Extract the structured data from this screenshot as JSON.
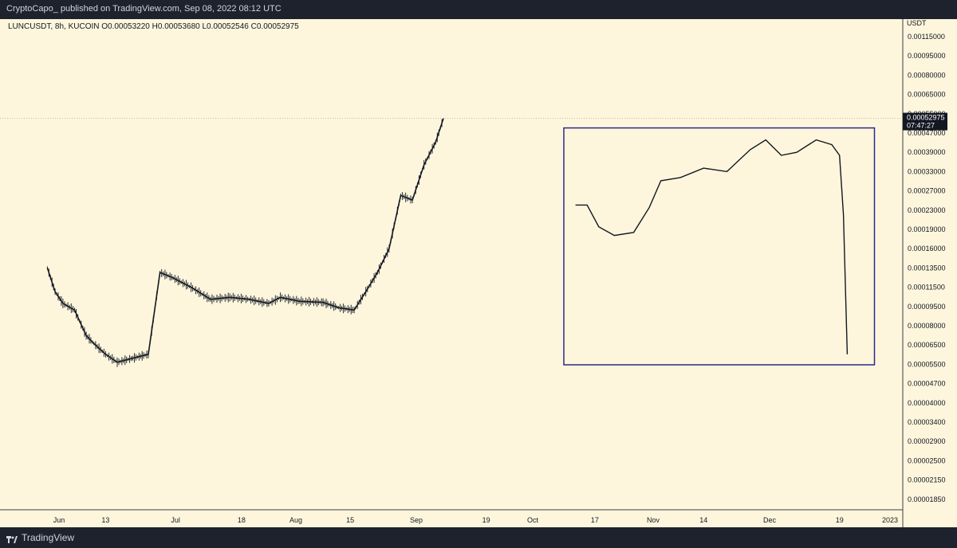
{
  "header": {
    "publisher": "CryptoCapo_ published on TradingView.com, Sep 08, 2022 08:12 UTC"
  },
  "symbol_line": "LUNCUSDT, 8h, KUCOIN  O0.00053220  H0.00053680  L0.00052546  C0.00052975",
  "footer": {
    "logo_text": "TradingView"
  },
  "colors": {
    "background": "#fdf6dc",
    "frame": "#1e222d",
    "candle": "#131722",
    "box": "#2a2a8c",
    "price_line": "#9a9a9a"
  },
  "chart_data": {
    "type": "candlestick",
    "symbol": "LUNCUSDT",
    "interval": "8h",
    "exchange": "KUCOIN",
    "ohlc_last": {
      "open": 0.0005322,
      "high": 0.0005368,
      "low": 0.00052546,
      "close": 0.00052975
    },
    "y_unit": "USDT",
    "y_scale": "log",
    "y_ticks": [
      "0.00115000",
      "0.00095000",
      "0.00080000",
      "0.00065000",
      "0.00055000",
      "0.00047000",
      "0.00039000",
      "0.00033000",
      "0.00027000",
      "0.00023000",
      "0.00019000",
      "0.00016000",
      "0.00013500",
      "0.00011500",
      "0.00009500",
      "0.00008000",
      "0.00006500",
      "0.00005500",
      "0.00004700",
      "0.00004000",
      "0.00003400",
      "0.00002900",
      "0.00002500",
      "0.00002150",
      "0.00001850"
    ],
    "x_ticks": [
      "Jun",
      "13",
      "Jul",
      "18",
      "Aug",
      "15",
      "Sep",
      "19",
      "Oct",
      "17",
      "Nov",
      "14",
      "Dec",
      "19",
      "2023"
    ],
    "last_price_label": "0.00052975",
    "countdown_label": "07:47:27",
    "price_series": [
      {
        "date": "2022-05-29",
        "close": 0.000135
      },
      {
        "date": "2022-05-31",
        "close": 0.00011
      },
      {
        "date": "2022-06-02",
        "close": 9.8e-05
      },
      {
        "date": "2022-06-05",
        "close": 9.2e-05
      },
      {
        "date": "2022-06-08",
        "close": 7.2e-05
      },
      {
        "date": "2022-06-10",
        "close": 6.6e-05
      },
      {
        "date": "2022-06-13",
        "close": 6e-05
      },
      {
        "date": "2022-06-16",
        "close": 5.6e-05
      },
      {
        "date": "2022-06-20",
        "close": 5.8e-05
      },
      {
        "date": "2022-06-24",
        "close": 6e-05
      },
      {
        "date": "2022-06-27",
        "close": 0.00013
      },
      {
        "date": "2022-06-30",
        "close": 0.000125
      },
      {
        "date": "2022-07-05",
        "close": 0.000115
      },
      {
        "date": "2022-07-10",
        "close": 0.000102
      },
      {
        "date": "2022-07-15",
        "close": 0.000104
      },
      {
        "date": "2022-07-20",
        "close": 0.000102
      },
      {
        "date": "2022-07-25",
        "close": 9.8e-05
      },
      {
        "date": "2022-07-28",
        "close": 0.000104
      },
      {
        "date": "2022-08-02",
        "close": 0.0001
      },
      {
        "date": "2022-08-08",
        "close": 9.9e-05
      },
      {
        "date": "2022-08-12",
        "close": 9.4e-05
      },
      {
        "date": "2022-08-16",
        "close": 9.2e-05
      },
      {
        "date": "2022-08-19",
        "close": 0.00011
      },
      {
        "date": "2022-08-22",
        "close": 0.00013
      },
      {
        "date": "2022-08-25",
        "close": 0.00016
      },
      {
        "date": "2022-08-28",
        "close": 0.00026
      },
      {
        "date": "2022-08-31",
        "close": 0.00025
      },
      {
        "date": "2022-09-03",
        "close": 0.00035
      },
      {
        "date": "2022-09-06",
        "close": 0.00043
      },
      {
        "date": "2022-09-08",
        "close": 0.00052975
      }
    ],
    "annotations": [
      {
        "type": "rectangle",
        "label": "",
        "x_range": [
          "2022-10-09",
          "2022-12-28"
        ],
        "y_range": [
          5.48e-05,
          0.00049
        ]
      }
    ],
    "overlay_projection": [
      {
        "date": "2022-10-12",
        "value": 0.00024
      },
      {
        "date": "2022-10-15",
        "value": 0.00024
      },
      {
        "date": "2022-10-18",
        "value": 0.000195
      },
      {
        "date": "2022-10-22",
        "value": 0.00018
      },
      {
        "date": "2022-10-27",
        "value": 0.000185
      },
      {
        "date": "2022-10-31",
        "value": 0.000235
      },
      {
        "date": "2022-11-03",
        "value": 0.0003
      },
      {
        "date": "2022-11-08",
        "value": 0.00031
      },
      {
        "date": "2022-11-14",
        "value": 0.00034
      },
      {
        "date": "2022-11-20",
        "value": 0.00033
      },
      {
        "date": "2022-11-26",
        "value": 0.0004
      },
      {
        "date": "2022-11-30",
        "value": 0.00044
      },
      {
        "date": "2022-12-04",
        "value": 0.00038
      },
      {
        "date": "2022-12-08",
        "value": 0.00039
      },
      {
        "date": "2022-12-13",
        "value": 0.00044
      },
      {
        "date": "2022-12-17",
        "value": 0.00042
      },
      {
        "date": "2022-12-19",
        "value": 0.00038
      },
      {
        "date": "2022-12-20",
        "value": 0.00022
      },
      {
        "date": "2022-12-21",
        "value": 6e-05
      }
    ]
  }
}
